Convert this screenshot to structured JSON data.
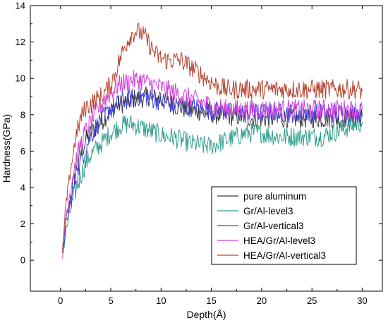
{
  "chart_data": {
    "type": "line",
    "xlabel": "Depth(Å)",
    "ylabel": "Hardness(GPa)",
    "xlim": [
      -3,
      32
    ],
    "ylim": [
      -1.7,
      14
    ],
    "xticks": [
      0,
      5,
      10,
      15,
      20,
      25,
      30
    ],
    "yticks": [
      0,
      2,
      4,
      6,
      8,
      10,
      12,
      14
    ],
    "legend_position": "bottom-right",
    "grid": false,
    "x": [
      0.2,
      0.5,
      1,
      1.5,
      2,
      2.5,
      3,
      3.5,
      4,
      4.5,
      5,
      5.5,
      6,
      6.5,
      7,
      7.5,
      8,
      8.5,
      9,
      9.5,
      10,
      10.5,
      11,
      11.5,
      12,
      12.5,
      13,
      13.5,
      14,
      14.5,
      15,
      15.5,
      16,
      16.5,
      17,
      17.5,
      18,
      18.5,
      19,
      19.5,
      20,
      20.5,
      21,
      21.5,
      22,
      22.5,
      23,
      23.5,
      24,
      24.5,
      25,
      25.5,
      26,
      26.5,
      27,
      27.5,
      28,
      28.5,
      29,
      29.5,
      30
    ],
    "series": [
      {
        "name": "pure aluminum",
        "color": "#3a3a3a",
        "values": [
          0.3,
          2.0,
          3.5,
          4.8,
          5.8,
          6.6,
          7.0,
          7.3,
          7.6,
          7.9,
          8.2,
          8.5,
          8.6,
          8.7,
          8.8,
          8.9,
          8.9,
          9.0,
          9.0,
          8.9,
          8.8,
          8.7,
          8.6,
          8.5,
          8.4,
          8.3,
          8.3,
          8.2,
          8.2,
          8.1,
          8.1,
          8.0,
          8.0,
          8.0,
          7.9,
          7.9,
          7.9,
          7.9,
          7.8,
          7.8,
          7.8,
          7.8,
          7.8,
          7.8,
          7.8,
          7.8,
          7.8,
          7.8,
          7.8,
          7.8,
          7.8,
          7.8,
          7.8,
          7.8,
          7.8,
          7.8,
          7.8,
          7.8,
          7.8,
          7.8,
          7.9
        ]
      },
      {
        "name": "Gr/Al-level3",
        "color": "#2f9e8c",
        "values": [
          0.2,
          1.5,
          2.8,
          3.8,
          4.6,
          5.3,
          5.8,
          6.1,
          6.4,
          6.7,
          7.0,
          7.2,
          7.4,
          7.5,
          7.5,
          7.4,
          7.3,
          7.2,
          7.1,
          7.0,
          6.9,
          6.8,
          6.8,
          6.7,
          6.6,
          6.5,
          6.4,
          6.4,
          6.3,
          6.3,
          6.3,
          6.4,
          6.5,
          6.6,
          6.7,
          6.8,
          6.9,
          7.0,
          7.0,
          7.0,
          7.0,
          6.9,
          6.9,
          6.8,
          6.8,
          6.8,
          6.8,
          6.8,
          6.8,
          6.8,
          6.8,
          6.8,
          6.8,
          6.9,
          7.0,
          7.1,
          7.2,
          7.3,
          7.4,
          7.5,
          7.6
        ]
      },
      {
        "name": "Gr/Al-vertical3",
        "color": "#4040e0",
        "values": [
          0.3,
          1.8,
          3.2,
          4.4,
          5.4,
          6.2,
          6.8,
          7.3,
          7.7,
          8.0,
          8.3,
          8.5,
          8.7,
          8.8,
          8.9,
          9.0,
          9.0,
          9.0,
          8.9,
          8.8,
          8.8,
          8.7,
          8.6,
          8.6,
          8.5,
          8.5,
          8.4,
          8.4,
          8.3,
          8.3,
          8.2,
          8.2,
          8.2,
          8.2,
          8.1,
          8.1,
          8.1,
          8.1,
          8.1,
          8.1,
          8.1,
          8.1,
          8.1,
          8.1,
          8.1,
          8.1,
          8.1,
          8.1,
          8.1,
          8.1,
          8.1,
          8.1,
          8.1,
          8.1,
          8.1,
          8.1,
          8.1,
          8.1,
          8.1,
          8.1,
          8.1
        ]
      },
      {
        "name": "HEA/Gr/Al-level3",
        "color": "#d63de0",
        "values": [
          0.3,
          2.2,
          4.0,
          5.4,
          6.4,
          7.1,
          7.6,
          8.1,
          8.5,
          8.9,
          9.2,
          9.5,
          9.7,
          9.8,
          9.9,
          9.9,
          9.9,
          9.8,
          9.7,
          9.6,
          9.5,
          9.4,
          9.3,
          9.2,
          9.1,
          9.0,
          8.9,
          8.8,
          8.7,
          8.6,
          8.5,
          8.4,
          8.4,
          8.3,
          8.3,
          8.3,
          8.3,
          8.3,
          8.3,
          8.3,
          8.3,
          8.3,
          8.3,
          8.3,
          8.3,
          8.3,
          8.3,
          8.3,
          8.3,
          8.3,
          8.3,
          8.3,
          8.3,
          8.3,
          8.3,
          8.3,
          8.3,
          8.3,
          8.3,
          8.3,
          8.3
        ]
      },
      {
        "name": "HEA/Gr/Al-vertical3",
        "color": "#b5402a",
        "values": [
          0.3,
          2.8,
          5.0,
          6.7,
          7.8,
          8.4,
          8.6,
          8.8,
          9.0,
          9.3,
          9.7,
          10.4,
          11.2,
          11.9,
          12.4,
          12.6,
          12.5,
          12.2,
          11.7,
          11.3,
          11.1,
          11.0,
          11.0,
          11.0,
          11.0,
          10.8,
          10.6,
          10.4,
          10.2,
          10.0,
          9.8,
          9.6,
          9.5,
          9.4,
          9.4,
          9.4,
          9.4,
          9.4,
          9.4,
          9.4,
          9.4,
          9.4,
          9.4,
          9.4,
          9.4,
          9.4,
          9.4,
          9.4,
          9.4,
          9.4,
          9.4,
          9.4,
          9.4,
          9.4,
          9.4,
          9.4,
          9.4,
          9.4,
          9.4,
          9.4,
          9.3
        ]
      }
    ]
  }
}
